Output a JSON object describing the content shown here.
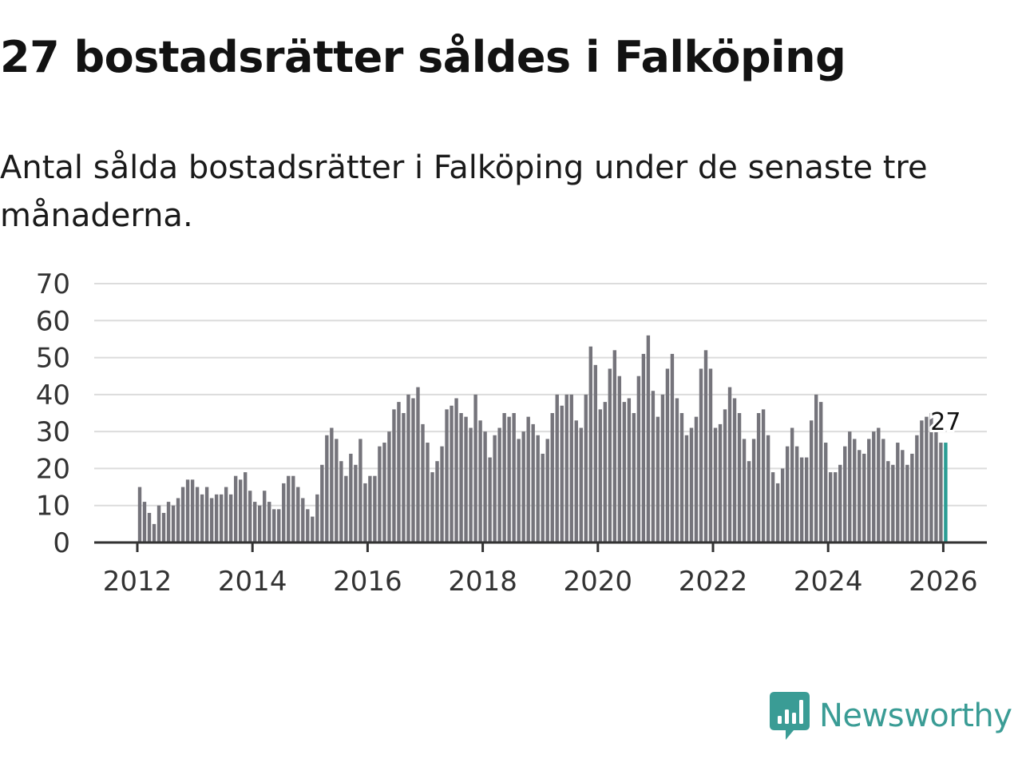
{
  "title": "27 bostadsrätter såldes i Falköping",
  "subtitle": "Antal sålda bostadsrätter i Falköping under de senaste tre månaderna.",
  "brand": {
    "name": "Newsworthy",
    "color": "#3a9c95",
    "icon": "bar-chart-bubble-icon"
  },
  "colors": {
    "bar": "#75747b",
    "highlight": "#2a9d94",
    "grid": "#dcdcdc",
    "axis": "#333333"
  },
  "chart_data": {
    "type": "bar",
    "title": "27 bostadsrätter såldes i Falköping",
    "xlabel": "",
    "ylabel": "",
    "ylim": [
      0,
      70
    ],
    "yticks": [
      0,
      10,
      20,
      30,
      40,
      50,
      60,
      70
    ],
    "xticks": [
      "2012",
      "2014",
      "2016",
      "2018",
      "2020",
      "2022",
      "2024",
      "2026"
    ],
    "x_start": "2012-01",
    "grid": true,
    "highlight_last": true,
    "last_value_label": "27",
    "values": [
      15,
      11,
      8,
      5,
      10,
      8,
      11,
      10,
      12,
      15,
      17,
      17,
      15,
      13,
      15,
      12,
      13,
      13,
      15,
      13,
      18,
      17,
      19,
      14,
      11,
      10,
      14,
      11,
      9,
      9,
      16,
      18,
      18,
      15,
      12,
      9,
      7,
      13,
      21,
      29,
      31,
      28,
      22,
      18,
      24,
      21,
      28,
      16,
      18,
      18,
      26,
      27,
      30,
      36,
      38,
      35,
      40,
      39,
      42,
      32,
      27,
      19,
      22,
      26,
      36,
      37,
      39,
      35,
      34,
      31,
      40,
      33,
      30,
      23,
      29,
      31,
      35,
      34,
      35,
      28,
      30,
      34,
      32,
      29,
      24,
      28,
      35,
      40,
      37,
      40,
      40,
      33,
      31,
      40,
      53,
      48,
      36,
      38,
      47,
      52,
      45,
      38,
      39,
      35,
      45,
      51,
      56,
      41,
      34,
      40,
      47,
      51,
      39,
      35,
      29,
      31,
      34,
      47,
      52,
      47,
      31,
      32,
      36,
      42,
      39,
      35,
      28,
      22,
      28,
      35,
      36,
      29,
      19,
      16,
      20,
      26,
      31,
      26,
      23,
      23,
      33,
      40,
      38,
      27,
      19,
      19,
      21,
      26,
      30,
      28,
      25,
      24,
      28,
      30,
      31,
      28,
      22,
      21,
      27,
      25,
      21,
      24,
      29,
      33,
      34,
      35,
      31,
      27,
      27
    ]
  }
}
